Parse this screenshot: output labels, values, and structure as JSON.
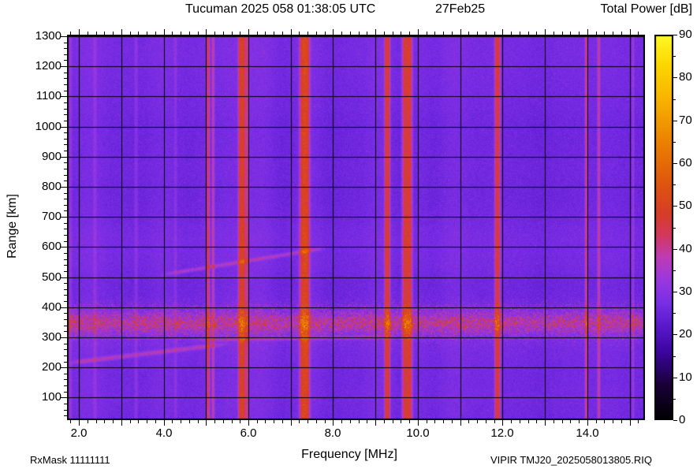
{
  "header": {
    "title": "Tucuman 2025 058 01:38:05 UTC",
    "date": "27Feb25",
    "colorbar_title": "Total Power [dB]"
  },
  "footer": {
    "rx_mask": "RxMask 11111111",
    "instrument_file": "VIPIR  TMJ20_2025058013805.RIQ"
  },
  "chart_data": {
    "type": "heatmap",
    "title": "Tucuman 2025 058 01:38:05 UTC 27Feb25",
    "xlabel": "Frequency [MHz]",
    "ylabel": "Range [km]",
    "colorbar_label": "Total Power [dB]",
    "x_range": [
      1.72,
      15.36
    ],
    "y_range": [
      25,
      1305
    ],
    "x_major_ticks": [
      2,
      4,
      6,
      8,
      10,
      12,
      14
    ],
    "x_major_tick_labels": [
      "2.0",
      "4.0",
      "6.0",
      "8.0",
      "10.0",
      "12.0",
      "14.0"
    ],
    "x_minor_tick_mhz": 0.2,
    "x_grid_step_mhz": 1,
    "y_major_ticks": [
      100,
      200,
      300,
      400,
      500,
      600,
      700,
      800,
      900,
      1000,
      1100,
      1200,
      1300
    ],
    "y_minor_tick_km": 20,
    "y_grid_step_km": 100,
    "colorbar": {
      "min_db": 0,
      "max_db": 90,
      "tick_step_db": 10,
      "minor_tick_db": 5,
      "tick_labels": [
        "0",
        "10",
        "20",
        "30",
        "40",
        "50",
        "60",
        "70",
        "80",
        "90"
      ],
      "stops": [
        [
          0,
          "#000000"
        ],
        [
          8,
          "#190037"
        ],
        [
          16,
          "#3c05a0"
        ],
        [
          22,
          "#5a19cd"
        ],
        [
          27,
          "#782de4"
        ],
        [
          32,
          "#9637e1"
        ],
        [
          38,
          "#be3cb4"
        ],
        [
          43,
          "#d2375f"
        ],
        [
          48,
          "#d73c28"
        ],
        [
          55,
          "#de550f"
        ],
        [
          65,
          "#eb8200"
        ],
        [
          75,
          "#f8b400"
        ],
        [
          83,
          "#fcd700"
        ],
        [
          90,
          "#fffa28"
        ]
      ]
    },
    "background_level_db": 27,
    "noise_db": 2.6,
    "speckle_global_density": 0.002,
    "rfi_stripes": [
      {
        "freq_mhz": 1.78,
        "sigma_mhz": 0.06,
        "amp_db": 5
      },
      {
        "freq_mhz": 2.38,
        "sigma_mhz": 0.04,
        "amp_db": 4
      },
      {
        "freq_mhz": 3.35,
        "sigma_mhz": 0.04,
        "amp_db": 4
      },
      {
        "freq_mhz": 4.28,
        "sigma_mhz": 0.035,
        "amp_db": 3.5
      },
      {
        "freq_mhz": 5.05,
        "sigma_mhz": 0.045,
        "amp_db": 15
      },
      {
        "freq_mhz": 5.17,
        "sigma_mhz": 0.035,
        "amp_db": 11
      },
      {
        "freq_mhz": 5.85,
        "sigma_mhz": 0.09,
        "amp_db": 21
      },
      {
        "freq_mhz": 5.98,
        "sigma_mhz": 0.04,
        "amp_db": 12
      },
      {
        "freq_mhz": 7.33,
        "sigma_mhz": 0.12,
        "amp_db": 23
      },
      {
        "freq_mhz": 9.28,
        "sigma_mhz": 0.07,
        "amp_db": 19
      },
      {
        "freq_mhz": 9.75,
        "sigma_mhz": 0.12,
        "amp_db": 22
      },
      {
        "freq_mhz": 11.88,
        "sigma_mhz": 0.07,
        "amp_db": 19
      },
      {
        "freq_mhz": 13.98,
        "sigma_mhz": 0.04,
        "amp_db": 13
      },
      {
        "freq_mhz": 14.27,
        "sigma_mhz": 0.035,
        "amp_db": 12
      },
      {
        "freq_mhz": 15.08,
        "sigma_mhz": 0.03,
        "amp_db": 6
      }
    ],
    "gain_bands": [
      {
        "freq_mhz": 8.55,
        "sigma_mhz": 0.35,
        "amp_db": -1.8
      },
      {
        "freq_mhz": 10.35,
        "sigma_mhz": 0.3,
        "amp_db": -2.2
      },
      {
        "freq_mhz": 12.65,
        "sigma_mhz": 0.55,
        "amp_db": -1.8
      },
      {
        "freq_mhz": 14.85,
        "sigma_mhz": 0.3,
        "amp_db": -1.5
      }
    ],
    "echoes": {
      "scatter_band": {
        "range_center_km": 350,
        "range_sigma_km": 55,
        "base_amp_db": 2.5,
        "speckle_amp_db": 13,
        "speckle_density": 0.55
      },
      "dense_band": {
        "range_center_km": 346,
        "range_sigma_km": 32,
        "base_amp_db": 1.5,
        "speckle_amp_db": 8,
        "speckle_density": 0.5
      },
      "low_trace": {
        "range_at_fmin_km": 214,
        "slope_km_per_mhz": 17,
        "fmin_mhz": 1.72,
        "fmax_mhz": 5.6,
        "fade_in_mhz": 0.3,
        "fade_out_mhz": 0.6,
        "range_sigma_km": 7,
        "amp_db": 11
      },
      "f_trace": {
        "range_at_fmin_km": 505,
        "slope_km_per_mhz": 23,
        "fmin_mhz": 3.85,
        "fmax_mhz": 7.85,
        "fade_in_mhz": 0.5,
        "fade_out_mhz": 0.3,
        "range_sigma_km": 6,
        "amp_db": 10
      },
      "ridge": {
        "range_at_fmin_km": 291,
        "slope_km_per_mhz": 2,
        "fmin_mhz": 4.6,
        "fmax_mhz": 9.6,
        "fade_in_mhz": 0.5,
        "fade_out_mhz": 0.5,
        "range_sigma_km": 6,
        "amp_db": 7
      }
    }
  }
}
